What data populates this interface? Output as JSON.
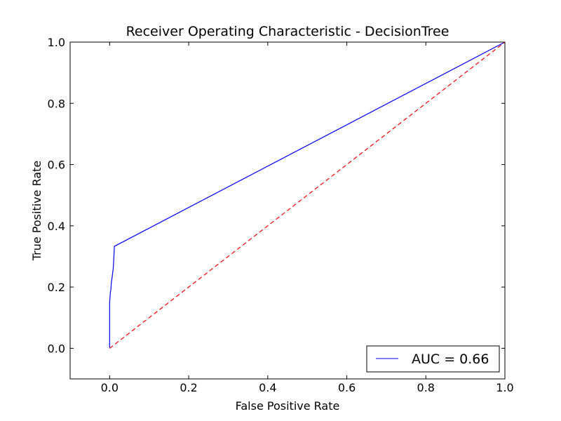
{
  "chart_data": {
    "type": "line",
    "title": "Receiver Operating Characteristic - DecisionTree",
    "xlabel": "False Positive Rate",
    "ylabel": "True Positive Rate",
    "xlim": [
      -0.1,
      1.0
    ],
    "ylim": [
      -0.1,
      1.0
    ],
    "xticks": [
      0.0,
      0.2,
      0.4,
      0.6,
      0.8,
      1.0
    ],
    "xtick_labels": [
      "0.0",
      "0.2",
      "0.4",
      "0.6",
      "0.8",
      "1.0"
    ],
    "yticks": [
      0.0,
      0.2,
      0.4,
      0.6,
      0.8,
      1.0
    ],
    "ytick_labels": [
      "0.0",
      "0.2",
      "0.4",
      "0.6",
      "0.8",
      "1.0"
    ],
    "grid": false,
    "legend_position": "lower-right",
    "series": [
      {
        "name": "AUC = 0.66",
        "color": "#0000ff",
        "style": "solid",
        "x": [
          0.0,
          0.0,
          0.002,
          0.003,
          0.004,
          0.005,
          0.006,
          0.007,
          0.008,
          0.009,
          0.01,
          0.012,
          1.0
        ],
        "y": [
          0.0,
          0.15,
          0.185,
          0.19,
          0.21,
          0.22,
          0.23,
          0.24,
          0.25,
          0.26,
          0.28,
          0.333,
          1.0
        ]
      },
      {
        "color": "#ff0000",
        "style": "dashed",
        "x": [
          0.0,
          1.0
        ],
        "y": [
          0.0,
          1.0
        ]
      }
    ]
  }
}
